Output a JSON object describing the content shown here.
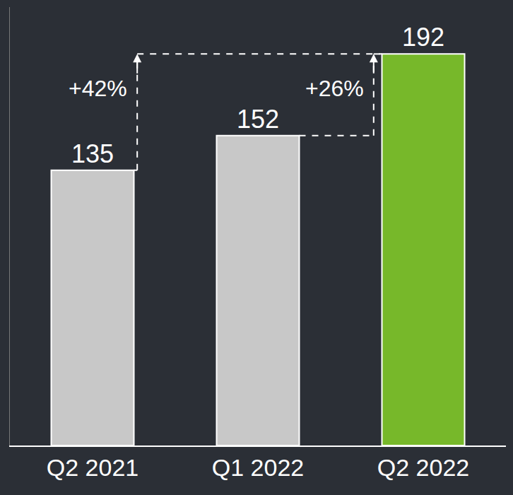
{
  "chart_data": {
    "type": "bar",
    "categories": [
      "Q2 2021",
      "Q1 2022",
      "Q2 2022"
    ],
    "values": [
      135,
      152,
      192
    ],
    "colors": [
      "#c8c8c8",
      "#c8c8c8",
      "#77b82a"
    ],
    "ylim": [
      0,
      215
    ],
    "yticks": [],
    "grid": false,
    "data_labels": true,
    "tick_labels": "x",
    "annotations": [
      {
        "text": "+42%",
        "from": "Q2 2021",
        "to": "Q2 2022"
      },
      {
        "text": "+26%",
        "from": "Q1 2022",
        "to": "Q2 2022"
      }
    ]
  }
}
